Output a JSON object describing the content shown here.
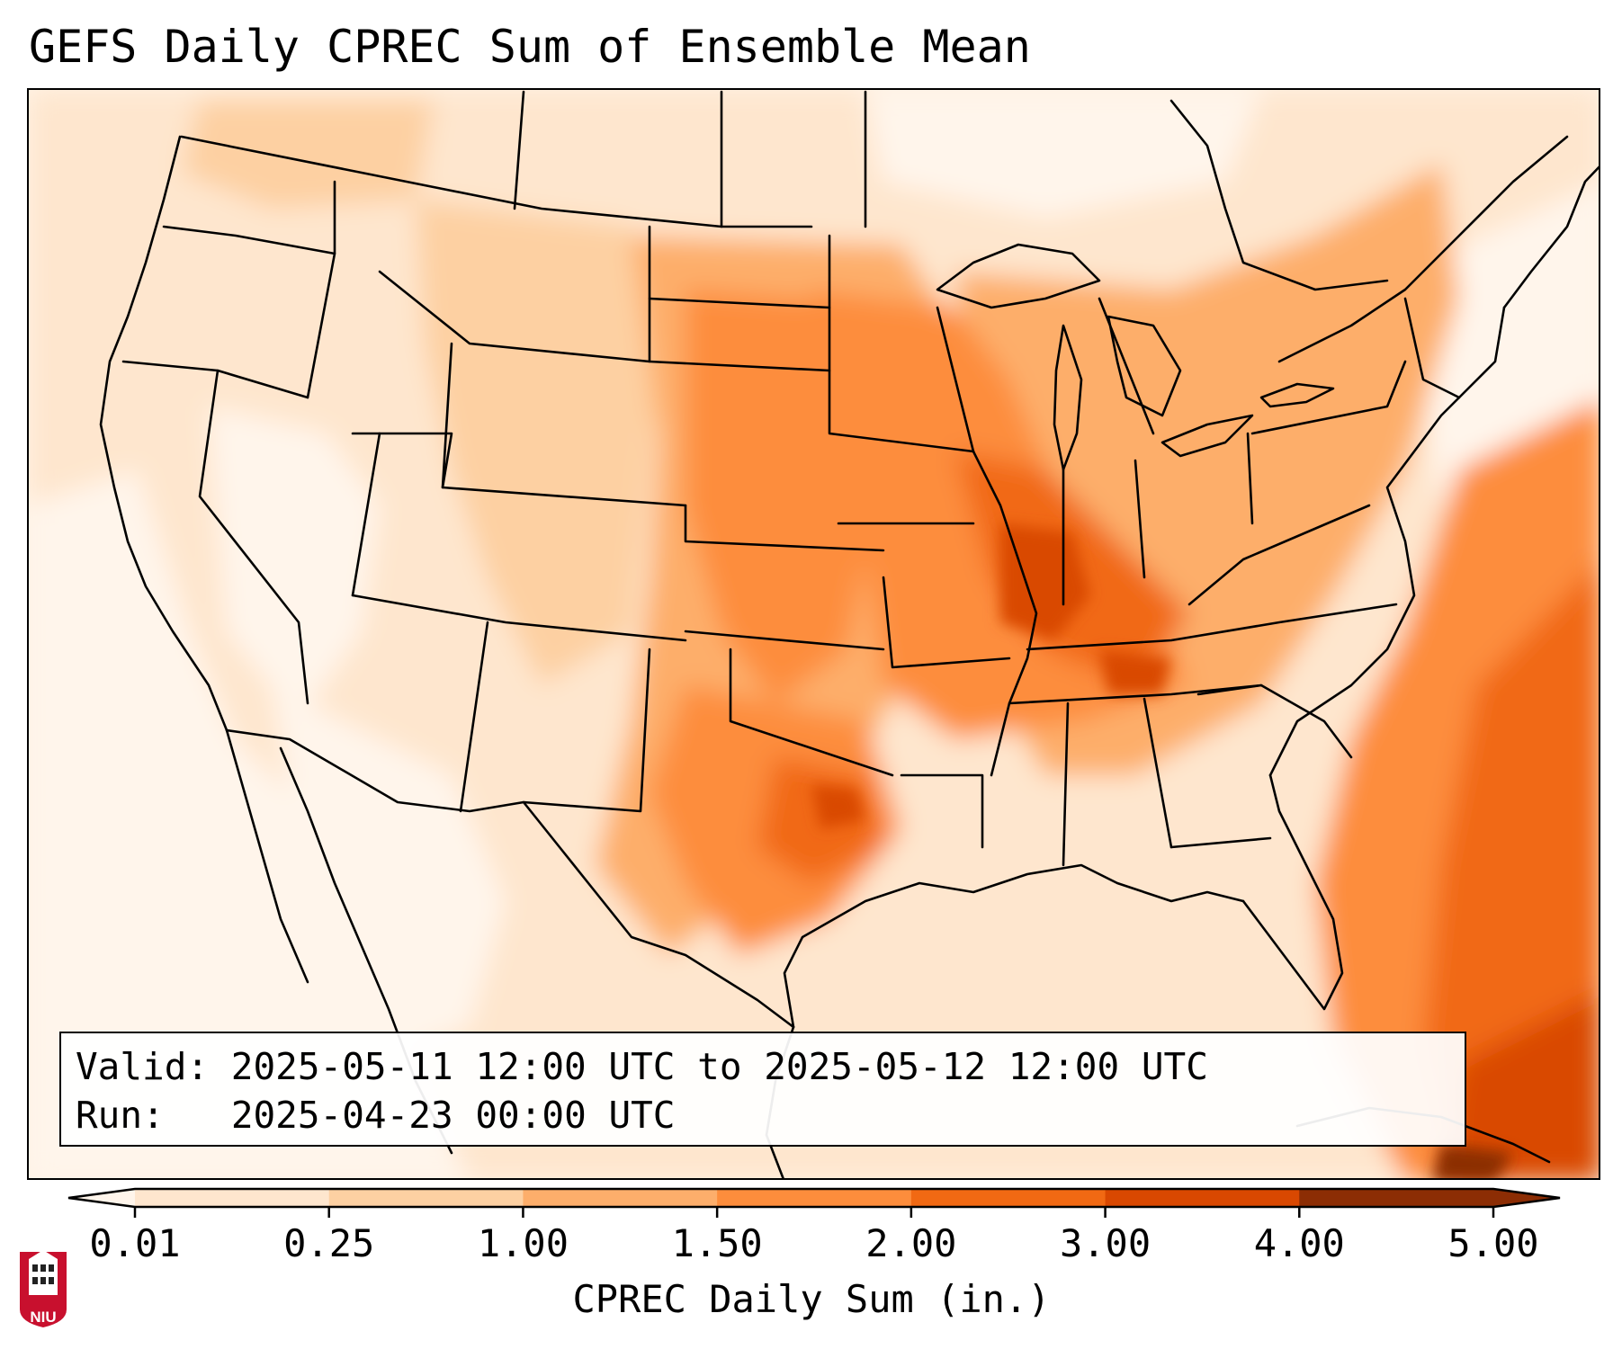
{
  "title": "GEFS Daily CPREC Sum of Ensemble Mean",
  "info": {
    "valid_label": "Valid:",
    "valid_value": "2025-05-11 12:00 UTC to 2025-05-12 12:00 UTC",
    "run_label": "Run:",
    "run_value": "2025-04-23 00:00 UTC"
  },
  "colorbar": {
    "label": "CPREC Daily Sum (in.)",
    "ticks": [
      "0.01",
      "0.25",
      "1.00",
      "1.50",
      "2.00",
      "3.00",
      "4.00",
      "5.00"
    ],
    "colors": [
      "#fff5eb",
      "#fee6ce",
      "#fdd0a2",
      "#fdae6b",
      "#fd8d3c",
      "#f16913",
      "#d94801",
      "#8c2d04"
    ],
    "extend": "both"
  },
  "map_colors": {
    "c0": "#fff5eb",
    "c1": "#fee6ce",
    "c2": "#fdd0a2",
    "c3": "#fdae6b",
    "c4": "#fd8d3c",
    "c5": "#f16913",
    "c6": "#d94801",
    "c7": "#8c2d04",
    "outline": "#000000"
  },
  "logo": {
    "text": "NIU",
    "color": "#c8102e"
  }
}
